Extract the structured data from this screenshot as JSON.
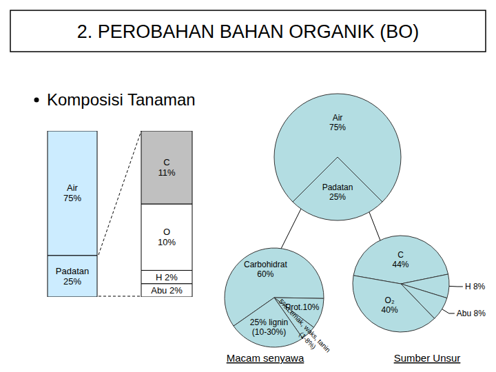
{
  "slide": {
    "title": "2. PEROBAHAN BAHAN ORGANIK (BO)",
    "bullet": "Komposisi Tanaman"
  },
  "chart_data": [
    {
      "type": "bar",
      "stacked": true,
      "data_labels": true,
      "tick_labels": false,
      "series": [
        {
          "name": "Padatan",
          "color": "#ccecff",
          "values": [
            25
          ],
          "value_labels": [
            "25%"
          ]
        },
        {
          "name": "Air",
          "color": "#ccecff",
          "values": [
            75
          ],
          "value_labels": [
            "75%"
          ]
        }
      ]
    },
    {
      "type": "bar",
      "stacked": true,
      "data_labels": true,
      "tick_labels": false,
      "series": [
        {
          "name": "Abu",
          "color": "#ffffff",
          "values": [
            2
          ],
          "value_labels": [
            "2%"
          ]
        },
        {
          "name": "H",
          "color": "#ffffff",
          "values": [
            2
          ],
          "value_labels": [
            "2%"
          ]
        },
        {
          "name": "O",
          "color": "#ffffff",
          "values": [
            10
          ],
          "value_labels": [
            "10%"
          ]
        },
        {
          "name": "C",
          "color": "#c0c0c0",
          "values": [
            11
          ],
          "value_labels": [
            "11%"
          ]
        }
      ]
    },
    {
      "type": "pie",
      "data_labels": true,
      "color": "#b3dde2",
      "categories": [
        "Air\n75%",
        "Padatan\n25%"
      ],
      "values": [
        75,
        25
      ]
    },
    {
      "type": "pie",
      "title": "Macam senyawa",
      "data_labels": true,
      "color": "#b3dde2",
      "categories": [
        "Carbohidrat\n60%",
        "Prot.10%",
        "5% Lemak, waks, tanin\n(1-8%)",
        "25% lignin\n(10-30%)"
      ],
      "values": [
        60,
        10,
        5,
        25
      ]
    },
    {
      "type": "pie",
      "title": "Sumber Unsur",
      "data_labels": true,
      "color": "#b3dde2",
      "categories": [
        "C\n44%",
        "H 8%",
        "Abu 8%",
        "O₂\n40%"
      ],
      "values": [
        44,
        8,
        8,
        40
      ]
    }
  ]
}
